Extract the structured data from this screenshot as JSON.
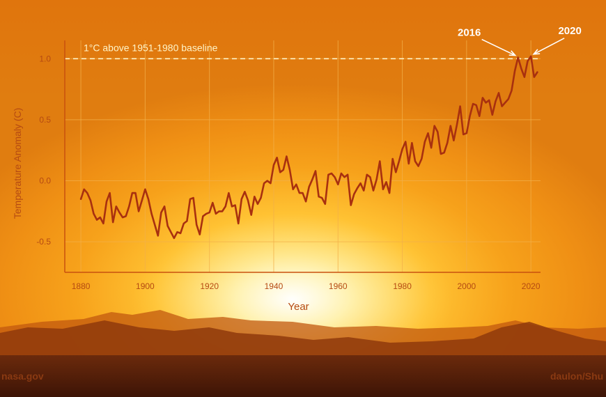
{
  "credits": {
    "left": "nasa.gov",
    "right": "daulon/Shu"
  },
  "chart_data": {
    "type": "line",
    "title": "",
    "xlabel": "Year",
    "ylabel": "Temperature Anomaly (C)",
    "xlim": [
      1875,
      2023
    ],
    "ylim": [
      -0.75,
      1.15
    ],
    "xticks": [
      1880,
      1900,
      1920,
      1940,
      1960,
      1980,
      2000,
      2020
    ],
    "yticks": [
      -0.5,
      0.0,
      0.5,
      1.0
    ],
    "ytick_labels": [
      "-0.5",
      "0.0",
      "0.5",
      "1.0"
    ],
    "grid": true,
    "baseline": {
      "value": 1.0,
      "label": "1°C above 1951-1980 baseline"
    },
    "annotations": [
      {
        "text": "2016",
        "x": 2016,
        "y": 1.01
      },
      {
        "text": "2020",
        "x": 2020,
        "y": 1.02
      }
    ],
    "colors": {
      "line": "#a8300f",
      "axis": "#c8500e",
      "text": "#b54a12",
      "grid": "#f2b04a",
      "baseline": "#fff4c8",
      "annotation": "#ffffff"
    },
    "series": [
      {
        "x": [
          1880,
          1881,
          1882,
          1883,
          1884,
          1885,
          1886,
          1887,
          1888,
          1889,
          1890,
          1891,
          1892,
          1893,
          1894,
          1895,
          1896,
          1897,
          1898,
          1899,
          1900,
          1901,
          1902,
          1903,
          1904,
          1905,
          1906,
          1907,
          1908,
          1909,
          1910,
          1911,
          1912,
          1913,
          1914,
          1915,
          1916,
          1917,
          1918,
          1919,
          1920,
          1921,
          1922,
          1923,
          1924,
          1925,
          1926,
          1927,
          1928,
          1929,
          1930,
          1931,
          1932,
          1933,
          1934,
          1935,
          1936,
          1937,
          1938,
          1939,
          1940,
          1941,
          1942,
          1943,
          1944,
          1945,
          1946,
          1947,
          1948,
          1949,
          1950,
          1951,
          1952,
          1953,
          1954,
          1955,
          1956,
          1957,
          1958,
          1959,
          1960,
          1961,
          1962,
          1963,
          1964,
          1965,
          1966,
          1967,
          1968,
          1969,
          1970,
          1971,
          1972,
          1973,
          1974,
          1975,
          1976,
          1977,
          1978,
          1979,
          1980,
          1981,
          1982,
          1983,
          1984,
          1985,
          1986,
          1987,
          1988,
          1989,
          1990,
          1991,
          1992,
          1993,
          1994,
          1995,
          1996,
          1997,
          1998,
          1999,
          2000,
          2001,
          2002,
          2003,
          2004,
          2005,
          2006,
          2007,
          2008,
          2009,
          2010,
          2011,
          2012,
          2013,
          2014,
          2015,
          2016,
          2017,
          2018,
          2019,
          2020,
          2021,
          2022
        ],
        "y": [
          -0.15,
          -0.07,
          -0.1,
          -0.16,
          -0.27,
          -0.32,
          -0.3,
          -0.35,
          -0.17,
          -0.1,
          -0.34,
          -0.21,
          -0.26,
          -0.3,
          -0.29,
          -0.21,
          -0.1,
          -0.1,
          -0.25,
          -0.16,
          -0.07,
          -0.15,
          -0.27,
          -0.36,
          -0.45,
          -0.26,
          -0.21,
          -0.37,
          -0.42,
          -0.47,
          -0.42,
          -0.43,
          -0.35,
          -0.33,
          -0.15,
          -0.14,
          -0.36,
          -0.44,
          -0.29,
          -0.27,
          -0.26,
          -0.18,
          -0.27,
          -0.25,
          -0.25,
          -0.21,
          -0.1,
          -0.21,
          -0.2,
          -0.35,
          -0.15,
          -0.09,
          -0.16,
          -0.28,
          -0.13,
          -0.19,
          -0.14,
          -0.02,
          0.0,
          -0.02,
          0.13,
          0.19,
          0.07,
          0.09,
          0.2,
          0.09,
          -0.07,
          -0.03,
          -0.1,
          -0.1,
          -0.17,
          -0.05,
          0.01,
          0.08,
          -0.13,
          -0.14,
          -0.19,
          0.05,
          0.06,
          0.03,
          -0.03,
          0.06,
          0.03,
          0.05,
          -0.2,
          -0.11,
          -0.06,
          -0.02,
          -0.08,
          0.05,
          0.03,
          -0.08,
          0.01,
          0.16,
          -0.07,
          -0.01,
          -0.1,
          0.18,
          0.07,
          0.16,
          0.26,
          0.32,
          0.14,
          0.31,
          0.16,
          0.12,
          0.18,
          0.32,
          0.39,
          0.27,
          0.45,
          0.4,
          0.22,
          0.23,
          0.31,
          0.45,
          0.33,
          0.46,
          0.61,
          0.38,
          0.39,
          0.53,
          0.63,
          0.62,
          0.53,
          0.68,
          0.64,
          0.66,
          0.54,
          0.65,
          0.72,
          0.61,
          0.64,
          0.67,
          0.74,
          0.9,
          1.01,
          0.92,
          0.85,
          0.98,
          1.02,
          0.85,
          0.89
        ]
      }
    ]
  }
}
